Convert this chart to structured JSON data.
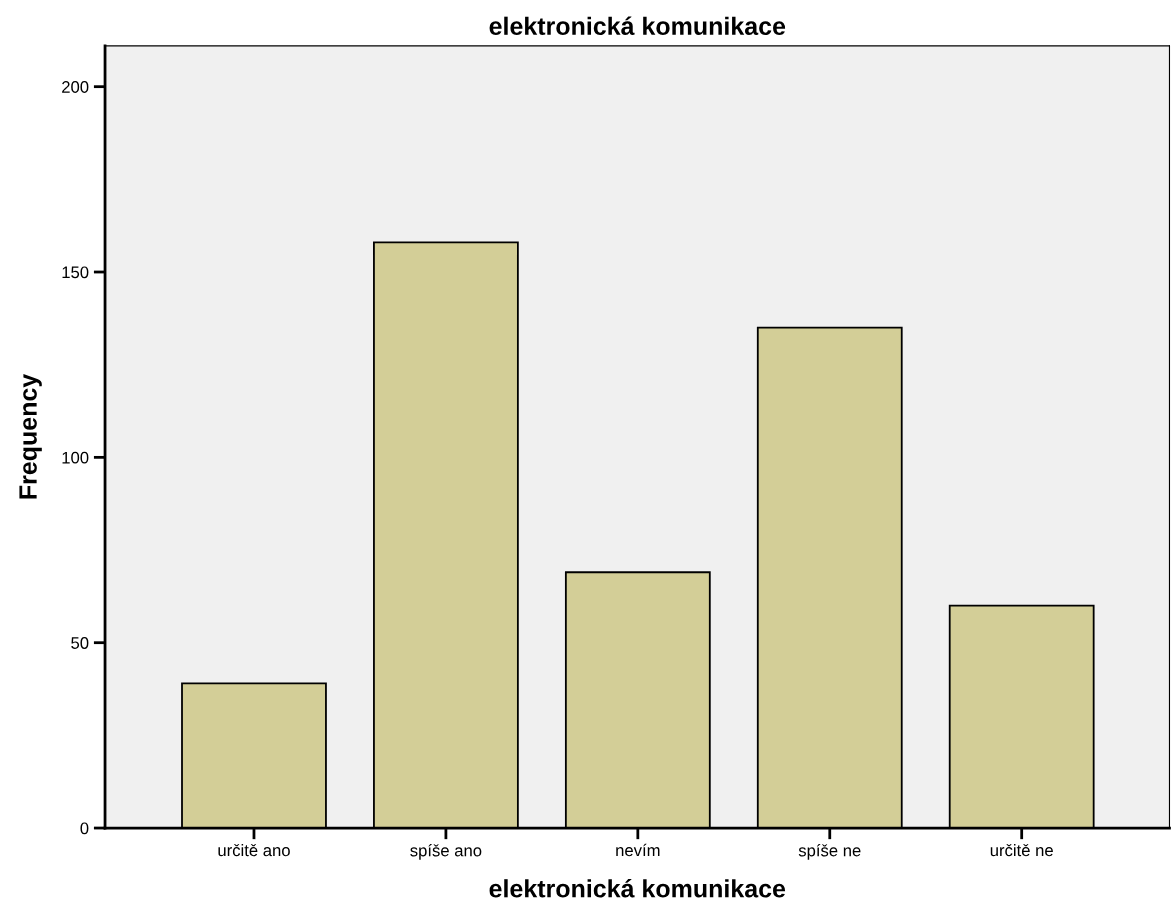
{
  "chart_data": {
    "type": "bar",
    "title": "elektronická komunikace",
    "xlabel": "elektronická komunikace",
    "ylabel": "Frequency",
    "categories": [
      "určitě ano",
      "spíše ano",
      "nevím",
      "spíše ne",
      "určitě ne"
    ],
    "values": [
      39,
      158,
      69,
      135,
      60
    ],
    "color": "#d3ce97",
    "ylim": [
      0,
      211
    ],
    "yticks": [
      0,
      50,
      100,
      150,
      200
    ],
    "grid": false,
    "legend": false
  }
}
